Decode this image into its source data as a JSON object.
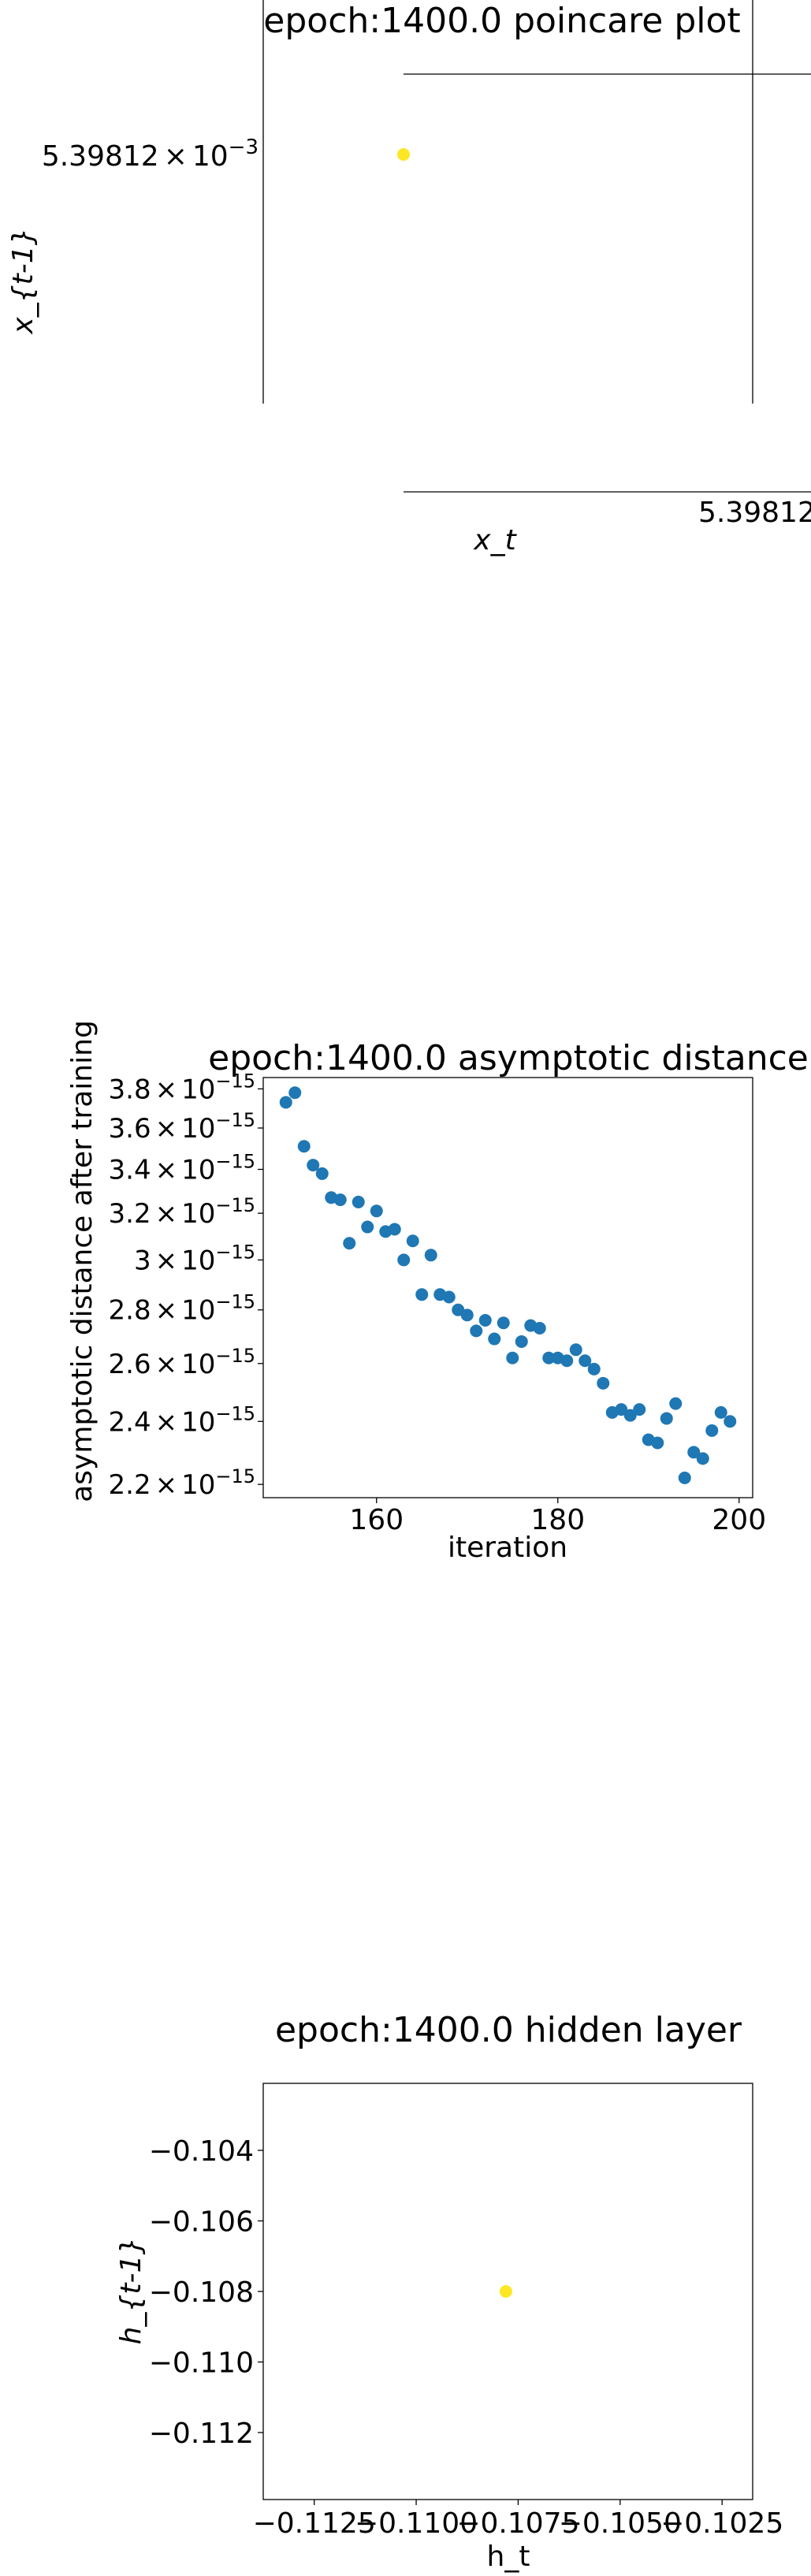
{
  "chart_data": [
    {
      "type": "scatter",
      "title": "epoch:1400.0 poincare plot",
      "xlabel": "x_t",
      "ylabel": "x_{t-1}",
      "x_tick_label": "5.39812",
      "y_tick_label_mantissa": "5.39812",
      "y_tick_label_times": "×",
      "y_tick_label_base": "10",
      "y_tick_label_exponent": "−3",
      "points": [
        {
          "x": 0.00539812,
          "y": 0.00539812
        }
      ],
      "colors": {
        "point": "#fde725",
        "axis": "#000000"
      }
    },
    {
      "type": "scatter",
      "title": "epoch:1400.0 asymptotic distance",
      "xlabel": "iteration",
      "ylabel": "asymptotic distance after training",
      "yscale": "log",
      "xlim": [
        147.5,
        201.5
      ],
      "ylim": [
        2.16e-15,
        3.86e-15
      ],
      "x_ticks": [
        {
          "value": 160,
          "label": "160"
        },
        {
          "value": 180,
          "label": "180"
        },
        {
          "value": 200,
          "label": "200"
        }
      ],
      "y_ticks": [
        {
          "value": 2.2e-15,
          "mantissa": "2.2",
          "times": "×",
          "base": "10",
          "exponent": "−15"
        },
        {
          "value": 2.4e-15,
          "mantissa": "2.4",
          "times": "×",
          "base": "10",
          "exponent": "−15"
        },
        {
          "value": 2.6e-15,
          "mantissa": "2.6",
          "times": "×",
          "base": "10",
          "exponent": "−15"
        },
        {
          "value": 2.8e-15,
          "mantissa": "2.8",
          "times": "×",
          "base": "10",
          "exponent": "−15"
        },
        {
          "value": 3e-15,
          "mantissa": "3",
          "times": "×",
          "base": "10",
          "exponent": "−15"
        },
        {
          "value": 3.2e-15,
          "mantissa": "3.2",
          "times": "×",
          "base": "10",
          "exponent": "−15"
        },
        {
          "value": 3.4e-15,
          "mantissa": "3.4",
          "times": "×",
          "base": "10",
          "exponent": "−15"
        },
        {
          "value": 3.6e-15,
          "mantissa": "3.6",
          "times": "×",
          "base": "10",
          "exponent": "−15"
        },
        {
          "value": 3.8e-15,
          "mantissa": "3.8",
          "times": "×",
          "base": "10",
          "exponent": "−15"
        }
      ],
      "x": [
        150,
        151,
        152,
        153,
        154,
        155,
        156,
        157,
        158,
        159,
        160,
        161,
        162,
        163,
        164,
        165,
        166,
        167,
        168,
        169,
        170,
        171,
        172,
        173,
        174,
        175,
        176,
        177,
        178,
        179,
        180,
        181,
        182,
        183,
        184,
        185,
        186,
        187,
        188,
        189,
        190,
        191,
        192,
        193,
        194,
        195,
        196,
        197,
        198,
        199
      ],
      "y": [
        3.73e-15,
        3.78e-15,
        3.51e-15,
        3.42e-15,
        3.38e-15,
        3.27e-15,
        3.26e-15,
        3.07e-15,
        3.25e-15,
        3.14e-15,
        3.21e-15,
        3.12e-15,
        3.13e-15,
        3e-15,
        3.08e-15,
        2.86e-15,
        3.02e-15,
        2.86e-15,
        2.85e-15,
        2.8e-15,
        2.78e-15,
        2.72e-15,
        2.76e-15,
        2.69e-15,
        2.75e-15,
        2.62e-15,
        2.68e-15,
        2.74e-15,
        2.73e-15,
        2.62e-15,
        2.62e-15,
        2.61e-15,
        2.65e-15,
        2.61e-15,
        2.58e-15,
        2.53e-15,
        2.43e-15,
        2.44e-15,
        2.42e-15,
        2.44e-15,
        2.34e-15,
        2.33e-15,
        2.41e-15,
        2.46e-15,
        2.22e-15,
        2.3e-15,
        2.28e-15,
        2.37e-15,
        2.43e-15,
        2.4e-15
      ],
      "colors": {
        "point": "#1f77b4",
        "axis": "#000000"
      }
    },
    {
      "type": "scatter",
      "title": "epoch:1400.0 hidden layer",
      "xlabel": "h_t",
      "ylabel": "h_{t-1}",
      "xlim": [
        -0.11375,
        -0.10175
      ],
      "ylim": [
        -0.1139,
        -0.1021
      ],
      "x_ticks": [
        {
          "value": -0.1125,
          "label": "−0.1125"
        },
        {
          "value": -0.11,
          "label": "−0.1100"
        },
        {
          "value": -0.1075,
          "label": "−0.1075"
        },
        {
          "value": -0.105,
          "label": "−0.1050"
        },
        {
          "value": -0.1025,
          "label": "−0.1025"
        }
      ],
      "y_ticks": [
        {
          "value": -0.104,
          "label": "−0.104"
        },
        {
          "value": -0.106,
          "label": "−0.106"
        },
        {
          "value": -0.108,
          "label": "−0.108"
        },
        {
          "value": -0.11,
          "label": "−0.110"
        },
        {
          "value": -0.112,
          "label": "−0.112"
        }
      ],
      "points": [
        {
          "x": -0.1078,
          "y": -0.108
        }
      ],
      "colors": {
        "point": "#fde725",
        "axis": "#000000"
      }
    }
  ]
}
